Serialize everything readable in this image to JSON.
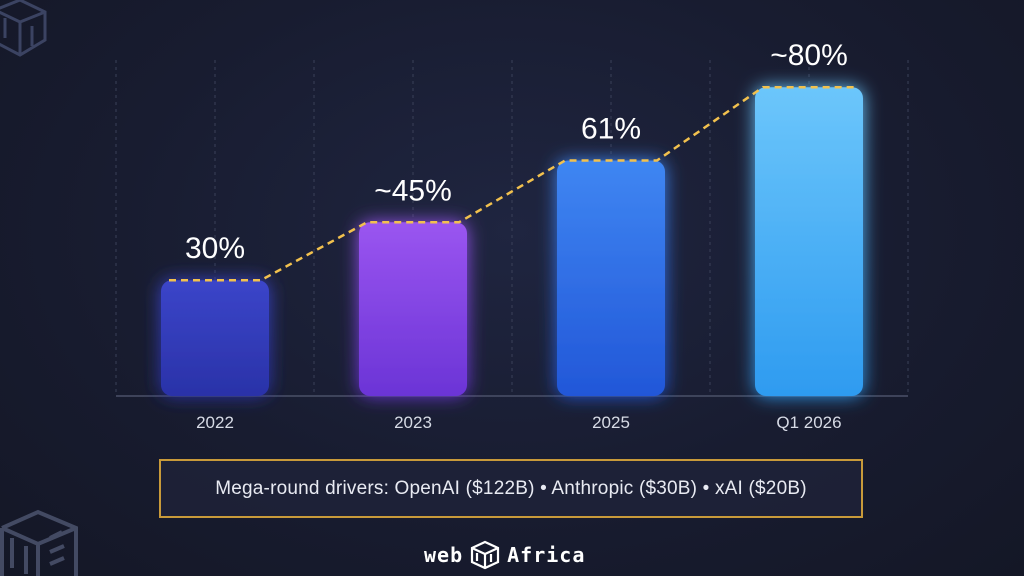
{
  "chart_data": {
    "type": "bar",
    "categories": [
      "2022",
      "2023",
      "2025",
      "Q1 2026"
    ],
    "values": [
      30,
      45,
      61,
      80
    ],
    "data_labels": [
      "30%",
      "~45%",
      "61%",
      "~80%"
    ],
    "ylim": [
      0,
      100
    ],
    "grid": "vertical-dashed",
    "trend_line": "dashed-connecting-bar-tops",
    "colors": {
      "bars": [
        [
          "#3b45c9",
          "#2a32a8"
        ],
        [
          "#9a55f0",
          "#6b34d6"
        ],
        [
          "#3f86f2",
          "#2257d8"
        ],
        [
          "#6cc6fb",
          "#2e9bf0"
        ]
      ],
      "trend": "#f2c14e",
      "axis": "#4b5168",
      "grid": "#3a4058",
      "label": "#ffffff",
      "tick": "#d7dbe6"
    }
  },
  "footer": {
    "drivers_text": "Mega-round drivers: OpenAI ($122B) • Anthropic ($30B) • xAI ($20B)",
    "brand_left": "web",
    "brand_right": "Africa"
  }
}
